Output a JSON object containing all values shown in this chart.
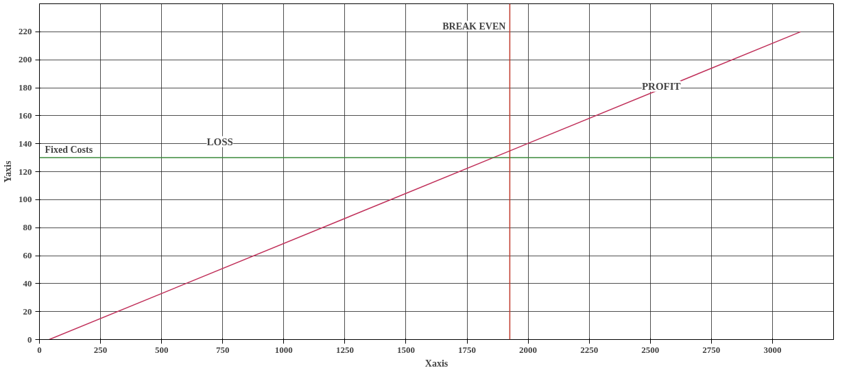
{
  "chart_data": {
    "type": "line",
    "xlabel": "Xaxis",
    "ylabel": "Yaxis",
    "series": [
      {
        "color": "#c0305a",
        "x": [
          40,
          3115
        ],
        "values": [
          0,
          220
        ]
      }
    ],
    "xlim": [
      0,
      3250
    ],
    "ylim": [
      0,
      240
    ],
    "xticks": [
      0,
      250,
      500,
      750,
      1000,
      1250,
      1500,
      1750,
      2000,
      2250,
      2500,
      2750,
      3000
    ],
    "yticks": [
      0,
      20,
      40,
      60,
      80,
      100,
      120,
      140,
      160,
      180,
      200,
      220
    ],
    "grid": true,
    "ref_lines": [
      {
        "axis": "y",
        "value": 130,
        "label": "Fixed Costs",
        "color": "#3a8a3a"
      },
      {
        "axis": "x",
        "value": 1925,
        "label": "BREAK EVEN",
        "color": "#c0392b"
      }
    ],
    "annotations": [
      "LOSS",
      "PROFIT"
    ]
  }
}
